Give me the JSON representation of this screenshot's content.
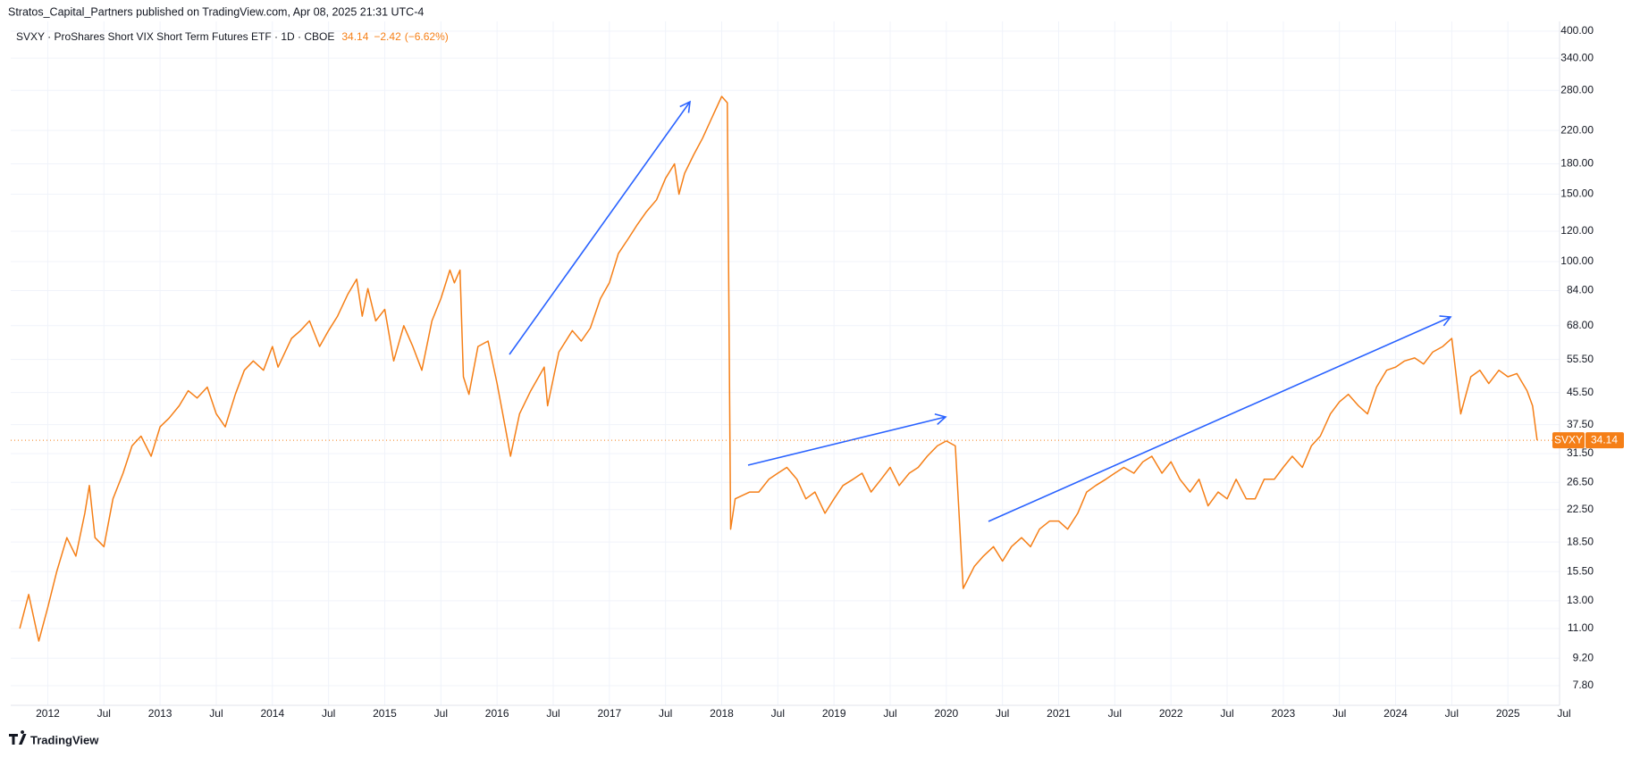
{
  "header": "Stratos_Capital_Partners published on TradingView.com, Apr 08, 2025 21:31 UTC-4",
  "footer": "TradingView",
  "chart_data": {
    "type": "line",
    "legend": {
      "symbol_line": "SVXY · ProShares Short VIX Short Term Futures ETF · 1D · CBOE",
      "last": 34.14,
      "change": {
        "value": -2.42,
        "label": "−2.42"
      },
      "change_pct": {
        "value": -6.62,
        "label": "(−6.62%)"
      }
    },
    "badge_symbol": "SVXY",
    "color": "#f57f17",
    "log_scale": true,
    "grid": true,
    "xlim": [
      2011.67,
      2025.46
    ],
    "ylim": [
      6.93,
      424
    ],
    "xticks": [
      {
        "value": 2012,
        "label": "2012"
      },
      {
        "value": 2012.5,
        "label": "Jul"
      },
      {
        "value": 2013,
        "label": "2013"
      },
      {
        "value": 2013.5,
        "label": "Jul"
      },
      {
        "value": 2014,
        "label": "2014"
      },
      {
        "value": 2014.5,
        "label": "Jul"
      },
      {
        "value": 2015,
        "label": "2015"
      },
      {
        "value": 2015.5,
        "label": "Jul"
      },
      {
        "value": 2016,
        "label": "2016"
      },
      {
        "value": 2016.5,
        "label": "Jul"
      },
      {
        "value": 2017,
        "label": "2017"
      },
      {
        "value": 2017.5,
        "label": "Jul"
      },
      {
        "value": 2018,
        "label": "2018"
      },
      {
        "value": 2018.5,
        "label": "Jul"
      },
      {
        "value": 2019,
        "label": "2019"
      },
      {
        "value": 2019.5,
        "label": "Jul"
      },
      {
        "value": 2020,
        "label": "2020"
      },
      {
        "value": 2020.5,
        "label": "Jul"
      },
      {
        "value": 2021,
        "label": "2021"
      },
      {
        "value": 2021.5,
        "label": "Jul"
      },
      {
        "value": 2022,
        "label": "2022"
      },
      {
        "value": 2022.5,
        "label": "Jul"
      },
      {
        "value": 2023,
        "label": "2023"
      },
      {
        "value": 2023.5,
        "label": "Jul"
      },
      {
        "value": 2024,
        "label": "2024"
      },
      {
        "value": 2024.5,
        "label": "Jul"
      },
      {
        "value": 2025,
        "label": "2025"
      },
      {
        "value": 2025.5,
        "label": "Jul"
      }
    ],
    "yticks": [
      {
        "value": 400,
        "label": "400.00"
      },
      {
        "value": 340,
        "label": "340.00"
      },
      {
        "value": 280,
        "label": "280.00"
      },
      {
        "value": 220,
        "label": "220.00"
      },
      {
        "value": 180,
        "label": "180.00"
      },
      {
        "value": 150,
        "label": "150.00"
      },
      {
        "value": 120,
        "label": "120.00"
      },
      {
        "value": 100,
        "label": "100.00"
      },
      {
        "value": 84,
        "label": "84.00"
      },
      {
        "value": 68,
        "label": "68.00"
      },
      {
        "value": 55.5,
        "label": "55.50"
      },
      {
        "value": 45.5,
        "label": "45.50"
      },
      {
        "value": 37.5,
        "label": "37.50"
      },
      {
        "value": 31.5,
        "label": "31.50"
      },
      {
        "value": 26.5,
        "label": "26.50"
      },
      {
        "value": 22.5,
        "label": "22.50"
      },
      {
        "value": 18.5,
        "label": "18.50"
      },
      {
        "value": 15.5,
        "label": "15.50"
      },
      {
        "value": 13,
        "label": "13.00"
      },
      {
        "value": 11,
        "label": "11.00"
      },
      {
        "value": 9.2,
        "label": "9.20"
      },
      {
        "value": 7.8,
        "label": "7.80"
      }
    ],
    "x": [
      2011.75,
      2011.83,
      2011.92,
      2012.0,
      2012.08,
      2012.17,
      2012.25,
      2012.33,
      2012.37,
      2012.42,
      2012.5,
      2012.58,
      2012.67,
      2012.75,
      2012.83,
      2012.92,
      2013.0,
      2013.08,
      2013.17,
      2013.25,
      2013.33,
      2013.42,
      2013.5,
      2013.58,
      2013.67,
      2013.75,
      2013.83,
      2013.92,
      2014.0,
      2014.05,
      2014.17,
      2014.25,
      2014.33,
      2014.42,
      2014.5,
      2014.58,
      2014.67,
      2014.75,
      2014.8,
      2014.85,
      2014.92,
      2015.0,
      2015.08,
      2015.17,
      2015.25,
      2015.33,
      2015.42,
      2015.5,
      2015.58,
      2015.62,
      2015.67,
      2015.7,
      2015.75,
      2015.83,
      2015.92,
      2016.0,
      2016.08,
      2016.12,
      2016.2,
      2016.3,
      2016.42,
      2016.45,
      2016.55,
      2016.67,
      2016.75,
      2016.83,
      2016.92,
      2017.0,
      2017.08,
      2017.17,
      2017.25,
      2017.33,
      2017.42,
      2017.5,
      2017.58,
      2017.62,
      2017.67,
      2017.75,
      2017.83,
      2017.92,
      2018.0,
      2018.05,
      2018.08,
      2018.12,
      2018.25,
      2018.33,
      2018.42,
      2018.5,
      2018.58,
      2018.67,
      2018.75,
      2018.83,
      2018.92,
      2019.0,
      2019.08,
      2019.17,
      2019.25,
      2019.33,
      2019.42,
      2019.5,
      2019.58,
      2019.67,
      2019.75,
      2019.83,
      2019.92,
      2020.0,
      2020.08,
      2020.15,
      2020.25,
      2020.33,
      2020.42,
      2020.5,
      2020.58,
      2020.67,
      2020.75,
      2020.83,
      2020.92,
      2021.0,
      2021.08,
      2021.17,
      2021.25,
      2021.33,
      2021.42,
      2021.5,
      2021.58,
      2021.67,
      2021.75,
      2021.83,
      2021.92,
      2022.0,
      2022.08,
      2022.17,
      2022.25,
      2022.33,
      2022.42,
      2022.5,
      2022.58,
      2022.67,
      2022.75,
      2022.83,
      2022.92,
      2023.0,
      2023.08,
      2023.17,
      2023.25,
      2023.33,
      2023.42,
      2023.5,
      2023.58,
      2023.67,
      2023.75,
      2023.83,
      2023.92,
      2024.0,
      2024.08,
      2024.17,
      2024.25,
      2024.33,
      2024.42,
      2024.5,
      2024.58,
      2024.67,
      2024.75,
      2024.83,
      2024.92,
      2025.0,
      2025.08,
      2025.17,
      2025.22,
      2025.26
    ],
    "values": [
      11.0,
      13.5,
      10.2,
      12.5,
      15.5,
      19,
      17,
      22,
      26,
      19,
      18,
      24,
      28,
      33,
      35,
      31,
      37,
      39,
      42,
      46,
      44,
      47,
      40,
      37,
      45,
      52,
      55,
      52,
      60,
      53,
      63,
      66,
      70,
      60,
      66,
      72,
      82,
      90,
      72,
      85,
      70,
      75,
      55,
      68,
      60,
      52,
      70,
      80,
      95,
      88,
      95,
      50,
      45,
      60,
      62,
      48,
      36,
      31,
      40,
      46,
      53,
      42,
      58,
      66,
      62,
      67,
      80,
      88,
      105,
      115,
      125,
      135,
      145,
      165,
      180,
      150,
      170,
      190,
      210,
      240,
      270,
      260,
      20,
      24,
      25,
      25,
      27,
      28,
      29,
      27,
      24,
      25,
      22,
      24,
      26,
      27,
      28,
      25,
      27,
      29,
      26,
      28,
      29,
      31,
      33,
      34,
      33,
      14,
      16,
      17,
      18,
      16.5,
      18,
      19,
      18,
      20,
      21,
      21,
      20,
      22,
      25,
      26,
      27,
      28,
      29,
      28,
      30,
      31,
      28,
      30,
      27,
      25,
      27,
      23,
      25,
      24,
      27,
      24,
      24,
      27,
      27,
      29,
      31,
      29,
      33,
      35,
      40,
      43,
      45,
      42,
      40,
      47,
      52,
      53,
      55,
      56,
      54,
      58,
      60,
      63,
      40,
      50,
      52,
      48,
      52,
      50,
      51,
      46,
      42,
      34.14
    ]
  }
}
